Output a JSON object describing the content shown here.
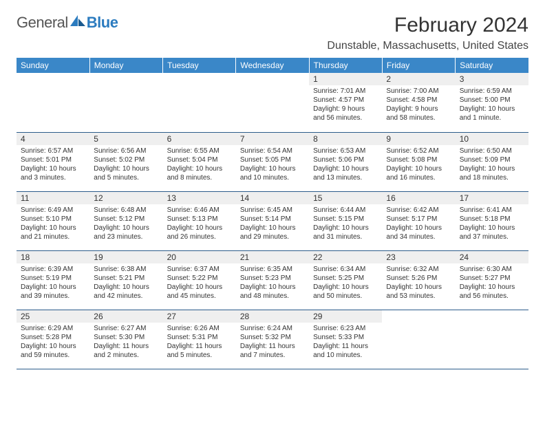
{
  "logo": {
    "general": "General",
    "blue": "Blue"
  },
  "title": "February 2024",
  "location": "Dunstable, Massachusetts, United States",
  "colors": {
    "header_bg": "#3a87c8",
    "header_text": "#ffffff",
    "daynum_bg": "#efefef",
    "border": "#2b5b8a",
    "logo_blue": "#2b7bbf",
    "logo_gray": "#555555"
  },
  "day_labels": [
    "Sunday",
    "Monday",
    "Tuesday",
    "Wednesday",
    "Thursday",
    "Friday",
    "Saturday"
  ],
  "weeks": [
    [
      null,
      null,
      null,
      null,
      {
        "n": "1",
        "sr": "Sunrise: 7:01 AM",
        "ss": "Sunset: 4:57 PM",
        "dl": "Daylight: 9 hours and 56 minutes."
      },
      {
        "n": "2",
        "sr": "Sunrise: 7:00 AM",
        "ss": "Sunset: 4:58 PM",
        "dl": "Daylight: 9 hours and 58 minutes."
      },
      {
        "n": "3",
        "sr": "Sunrise: 6:59 AM",
        "ss": "Sunset: 5:00 PM",
        "dl": "Daylight: 10 hours and 1 minute."
      }
    ],
    [
      {
        "n": "4",
        "sr": "Sunrise: 6:57 AM",
        "ss": "Sunset: 5:01 PM",
        "dl": "Daylight: 10 hours and 3 minutes."
      },
      {
        "n": "5",
        "sr": "Sunrise: 6:56 AM",
        "ss": "Sunset: 5:02 PM",
        "dl": "Daylight: 10 hours and 5 minutes."
      },
      {
        "n": "6",
        "sr": "Sunrise: 6:55 AM",
        "ss": "Sunset: 5:04 PM",
        "dl": "Daylight: 10 hours and 8 minutes."
      },
      {
        "n": "7",
        "sr": "Sunrise: 6:54 AM",
        "ss": "Sunset: 5:05 PM",
        "dl": "Daylight: 10 hours and 10 minutes."
      },
      {
        "n": "8",
        "sr": "Sunrise: 6:53 AM",
        "ss": "Sunset: 5:06 PM",
        "dl": "Daylight: 10 hours and 13 minutes."
      },
      {
        "n": "9",
        "sr": "Sunrise: 6:52 AM",
        "ss": "Sunset: 5:08 PM",
        "dl": "Daylight: 10 hours and 16 minutes."
      },
      {
        "n": "10",
        "sr": "Sunrise: 6:50 AM",
        "ss": "Sunset: 5:09 PM",
        "dl": "Daylight: 10 hours and 18 minutes."
      }
    ],
    [
      {
        "n": "11",
        "sr": "Sunrise: 6:49 AM",
        "ss": "Sunset: 5:10 PM",
        "dl": "Daylight: 10 hours and 21 minutes."
      },
      {
        "n": "12",
        "sr": "Sunrise: 6:48 AM",
        "ss": "Sunset: 5:12 PM",
        "dl": "Daylight: 10 hours and 23 minutes."
      },
      {
        "n": "13",
        "sr": "Sunrise: 6:46 AM",
        "ss": "Sunset: 5:13 PM",
        "dl": "Daylight: 10 hours and 26 minutes."
      },
      {
        "n": "14",
        "sr": "Sunrise: 6:45 AM",
        "ss": "Sunset: 5:14 PM",
        "dl": "Daylight: 10 hours and 29 minutes."
      },
      {
        "n": "15",
        "sr": "Sunrise: 6:44 AM",
        "ss": "Sunset: 5:15 PM",
        "dl": "Daylight: 10 hours and 31 minutes."
      },
      {
        "n": "16",
        "sr": "Sunrise: 6:42 AM",
        "ss": "Sunset: 5:17 PM",
        "dl": "Daylight: 10 hours and 34 minutes."
      },
      {
        "n": "17",
        "sr": "Sunrise: 6:41 AM",
        "ss": "Sunset: 5:18 PM",
        "dl": "Daylight: 10 hours and 37 minutes."
      }
    ],
    [
      {
        "n": "18",
        "sr": "Sunrise: 6:39 AM",
        "ss": "Sunset: 5:19 PM",
        "dl": "Daylight: 10 hours and 39 minutes."
      },
      {
        "n": "19",
        "sr": "Sunrise: 6:38 AM",
        "ss": "Sunset: 5:21 PM",
        "dl": "Daylight: 10 hours and 42 minutes."
      },
      {
        "n": "20",
        "sr": "Sunrise: 6:37 AM",
        "ss": "Sunset: 5:22 PM",
        "dl": "Daylight: 10 hours and 45 minutes."
      },
      {
        "n": "21",
        "sr": "Sunrise: 6:35 AM",
        "ss": "Sunset: 5:23 PM",
        "dl": "Daylight: 10 hours and 48 minutes."
      },
      {
        "n": "22",
        "sr": "Sunrise: 6:34 AM",
        "ss": "Sunset: 5:25 PM",
        "dl": "Daylight: 10 hours and 50 minutes."
      },
      {
        "n": "23",
        "sr": "Sunrise: 6:32 AM",
        "ss": "Sunset: 5:26 PM",
        "dl": "Daylight: 10 hours and 53 minutes."
      },
      {
        "n": "24",
        "sr": "Sunrise: 6:30 AM",
        "ss": "Sunset: 5:27 PM",
        "dl": "Daylight: 10 hours and 56 minutes."
      }
    ],
    [
      {
        "n": "25",
        "sr": "Sunrise: 6:29 AM",
        "ss": "Sunset: 5:28 PM",
        "dl": "Daylight: 10 hours and 59 minutes."
      },
      {
        "n": "26",
        "sr": "Sunrise: 6:27 AM",
        "ss": "Sunset: 5:30 PM",
        "dl": "Daylight: 11 hours and 2 minutes."
      },
      {
        "n": "27",
        "sr": "Sunrise: 6:26 AM",
        "ss": "Sunset: 5:31 PM",
        "dl": "Daylight: 11 hours and 5 minutes."
      },
      {
        "n": "28",
        "sr": "Sunrise: 6:24 AM",
        "ss": "Sunset: 5:32 PM",
        "dl": "Daylight: 11 hours and 7 minutes."
      },
      {
        "n": "29",
        "sr": "Sunrise: 6:23 AM",
        "ss": "Sunset: 5:33 PM",
        "dl": "Daylight: 11 hours and 10 minutes."
      },
      null,
      null
    ]
  ]
}
